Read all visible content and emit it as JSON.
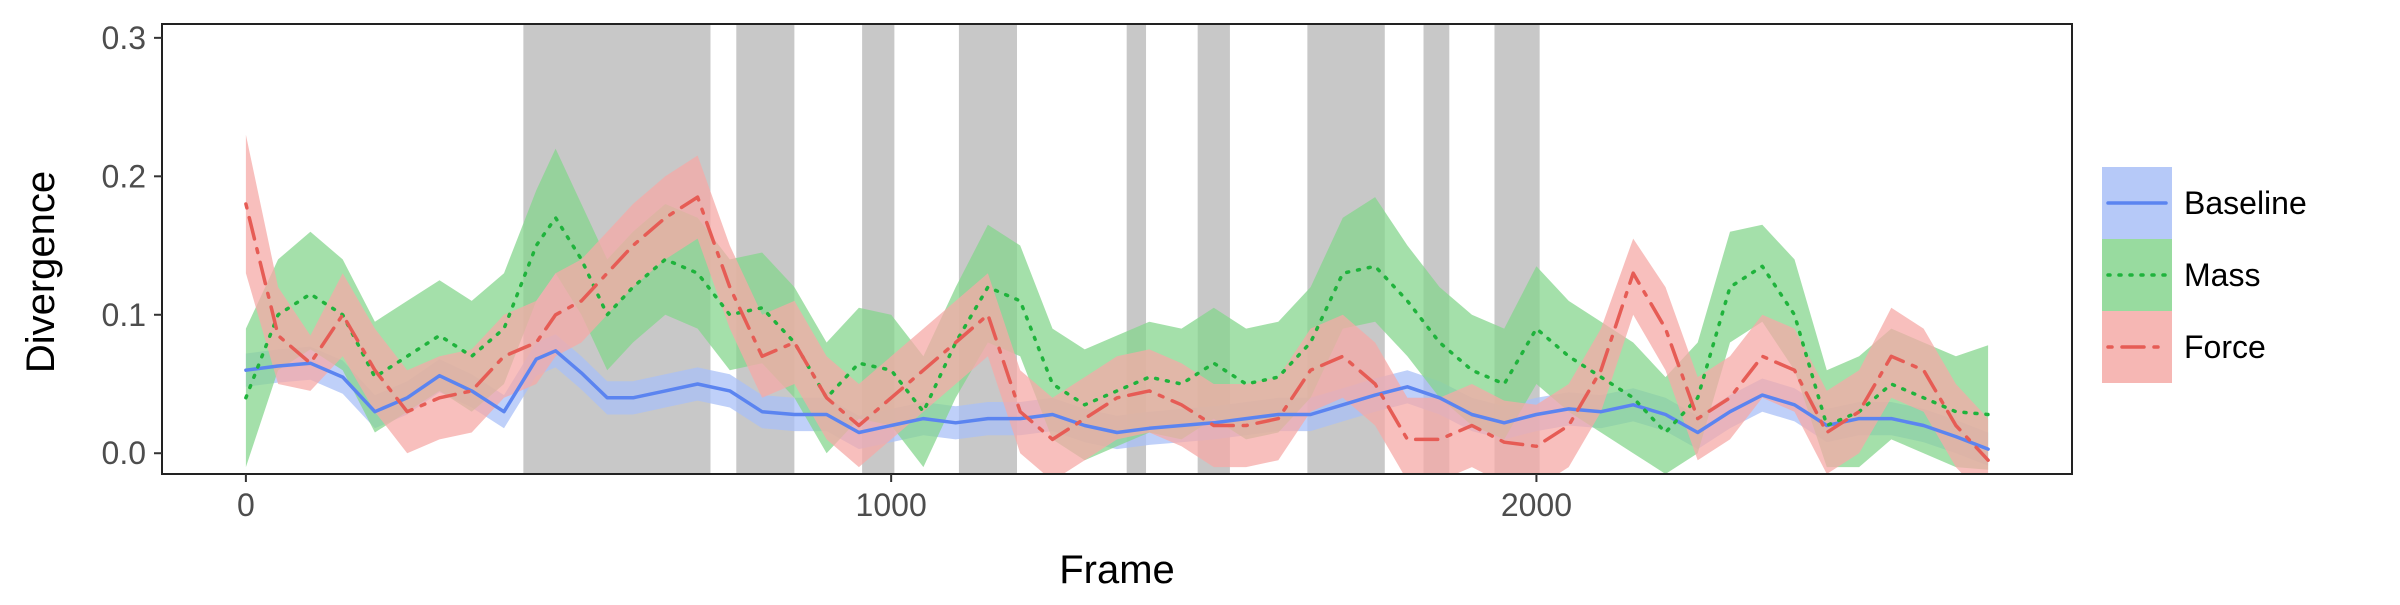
{
  "chart_data": {
    "type": "line",
    "title": "",
    "xlabel": "Frame",
    "ylabel": "Divergence",
    "xlim": [
      -130,
      2830
    ],
    "ylim": [
      -0.015,
      0.31
    ],
    "x_ticks": [
      0,
      1000,
      2000
    ],
    "x_tick_labels": [
      "0",
      "1000",
      "2000"
    ],
    "y_ticks": [
      0.0,
      0.1,
      0.2,
      0.3
    ],
    "y_tick_labels": [
      "0.0",
      "0.1",
      "0.2",
      "0.3"
    ],
    "grid": false,
    "legend_position": "right",
    "shaded_intervals": [
      [
        430,
        720
      ],
      [
        760,
        850
      ],
      [
        955,
        1005
      ],
      [
        1105,
        1195
      ],
      [
        1365,
        1395
      ],
      [
        1475,
        1525
      ],
      [
        1645,
        1765
      ],
      [
        1825,
        1865
      ],
      [
        1935,
        2005
      ]
    ],
    "shaded_color": "#c8c8c8",
    "series": [
      {
        "name": "Baseline",
        "style": "solid",
        "color": "#5b84f0",
        "fill": "#a9c0f7",
        "x": [
          0,
          50,
          100,
          150,
          200,
          250,
          300,
          350,
          400,
          450,
          480,
          520,
          560,
          600,
          650,
          700,
          750,
          800,
          850,
          900,
          950,
          1000,
          1050,
          1100,
          1150,
          1200,
          1250,
          1300,
          1350,
          1400,
          1450,
          1500,
          1550,
          1600,
          1650,
          1700,
          1750,
          1800,
          1850,
          1900,
          1950,
          2000,
          2050,
          2100,
          2150,
          2200,
          2250,
          2300,
          2350,
          2400,
          2450,
          2500,
          2550,
          2600,
          2650,
          2700
        ],
        "y": [
          0.06,
          0.063,
          0.065,
          0.055,
          0.03,
          0.04,
          0.056,
          0.045,
          0.03,
          0.068,
          0.074,
          0.058,
          0.04,
          0.04,
          0.045,
          0.05,
          0.045,
          0.03,
          0.028,
          0.028,
          0.015,
          0.02,
          0.025,
          0.022,
          0.025,
          0.025,
          0.028,
          0.02,
          0.015,
          0.018,
          0.02,
          0.022,
          0.025,
          0.028,
          0.028,
          0.035,
          0.042,
          0.048,
          0.04,
          0.028,
          0.022,
          0.028,
          0.032,
          0.03,
          0.035,
          0.028,
          0.015,
          0.03,
          0.042,
          0.035,
          0.02,
          0.025,
          0.025,
          0.02,
          0.012,
          0.003
        ],
        "lower": [
          0.048,
          0.051,
          0.053,
          0.043,
          0.018,
          0.028,
          0.044,
          0.033,
          0.018,
          0.056,
          0.062,
          0.046,
          0.028,
          0.028,
          0.033,
          0.038,
          0.033,
          0.018,
          0.016,
          0.016,
          0.003,
          0.008,
          0.013,
          0.01,
          0.013,
          0.013,
          0.016,
          0.008,
          0.003,
          0.006,
          0.008,
          0.01,
          0.013,
          0.016,
          0.016,
          0.023,
          0.03,
          0.036,
          0.028,
          0.016,
          0.01,
          0.016,
          0.02,
          0.018,
          0.023,
          0.016,
          0.003,
          0.018,
          0.03,
          0.023,
          0.008,
          0.013,
          0.013,
          0.008,
          0.0,
          -0.009
        ],
        "upper": [
          0.072,
          0.075,
          0.077,
          0.067,
          0.042,
          0.052,
          0.068,
          0.057,
          0.042,
          0.08,
          0.086,
          0.07,
          0.052,
          0.052,
          0.057,
          0.062,
          0.057,
          0.042,
          0.04,
          0.04,
          0.027,
          0.032,
          0.037,
          0.034,
          0.037,
          0.037,
          0.04,
          0.032,
          0.027,
          0.03,
          0.032,
          0.034,
          0.037,
          0.04,
          0.04,
          0.047,
          0.054,
          0.06,
          0.052,
          0.04,
          0.034,
          0.04,
          0.044,
          0.042,
          0.047,
          0.04,
          0.027,
          0.042,
          0.054,
          0.047,
          0.032,
          0.037,
          0.037,
          0.032,
          0.024,
          0.015
        ]
      },
      {
        "name": "Mass",
        "style": "dotted",
        "color": "#1fb33c",
        "fill": "#86d58e",
        "x": [
          0,
          50,
          100,
          150,
          200,
          250,
          300,
          350,
          400,
          450,
          480,
          520,
          560,
          600,
          650,
          700,
          750,
          800,
          850,
          900,
          950,
          1000,
          1050,
          1100,
          1150,
          1200,
          1250,
          1300,
          1350,
          1400,
          1450,
          1500,
          1550,
          1600,
          1650,
          1700,
          1750,
          1800,
          1850,
          1900,
          1950,
          2000,
          2050,
          2100,
          2150,
          2200,
          2250,
          2300,
          2350,
          2400,
          2450,
          2500,
          2550,
          2600,
          2650,
          2700
        ],
        "y": [
          0.04,
          0.1,
          0.115,
          0.1,
          0.055,
          0.07,
          0.085,
          0.07,
          0.09,
          0.15,
          0.17,
          0.14,
          0.1,
          0.12,
          0.14,
          0.13,
          0.1,
          0.105,
          0.08,
          0.04,
          0.065,
          0.06,
          0.03,
          0.08,
          0.12,
          0.11,
          0.05,
          0.035,
          0.045,
          0.055,
          0.05,
          0.065,
          0.05,
          0.055,
          0.08,
          0.13,
          0.135,
          0.11,
          0.08,
          0.06,
          0.05,
          0.09,
          0.07,
          0.055,
          0.04,
          0.015,
          0.04,
          0.12,
          0.135,
          0.1,
          0.02,
          0.03,
          0.05,
          0.04,
          0.03,
          0.028
        ],
        "lower": [
          -0.01,
          0.06,
          0.075,
          0.06,
          0.015,
          0.03,
          0.045,
          0.03,
          0.05,
          0.11,
          0.13,
          0.1,
          0.06,
          0.08,
          0.1,
          0.09,
          0.06,
          0.065,
          0.04,
          0.0,
          0.025,
          0.02,
          -0.01,
          0.04,
          0.08,
          0.07,
          0.01,
          -0.005,
          0.005,
          0.015,
          0.01,
          0.025,
          0.01,
          0.015,
          0.04,
          0.09,
          0.095,
          0.07,
          0.04,
          0.02,
          0.01,
          0.05,
          0.03,
          0.015,
          0.0,
          -0.015,
          0.0,
          0.08,
          0.095,
          0.06,
          -0.01,
          -0.01,
          0.01,
          0.0,
          -0.01,
          -0.012
        ],
        "upper": [
          0.09,
          0.14,
          0.16,
          0.14,
          0.095,
          0.11,
          0.125,
          0.11,
          0.13,
          0.19,
          0.22,
          0.18,
          0.14,
          0.16,
          0.18,
          0.17,
          0.14,
          0.145,
          0.12,
          0.08,
          0.105,
          0.1,
          0.07,
          0.12,
          0.165,
          0.15,
          0.09,
          0.075,
          0.085,
          0.095,
          0.09,
          0.105,
          0.09,
          0.095,
          0.12,
          0.17,
          0.185,
          0.15,
          0.12,
          0.1,
          0.09,
          0.135,
          0.11,
          0.095,
          0.08,
          0.055,
          0.08,
          0.16,
          0.165,
          0.14,
          0.06,
          0.07,
          0.09,
          0.08,
          0.07,
          0.078
        ]
      },
      {
        "name": "Force",
        "style": "dashdot",
        "color": "#e65c55",
        "fill": "#f5aaa7",
        "x": [
          0,
          50,
          100,
          150,
          200,
          250,
          300,
          350,
          400,
          450,
          480,
          520,
          560,
          600,
          650,
          700,
          750,
          800,
          850,
          900,
          950,
          1000,
          1050,
          1100,
          1150,
          1200,
          1250,
          1300,
          1350,
          1400,
          1450,
          1500,
          1550,
          1600,
          1650,
          1700,
          1750,
          1800,
          1850,
          1900,
          1950,
          2000,
          2050,
          2100,
          2150,
          2200,
          2250,
          2300,
          2350,
          2400,
          2450,
          2500,
          2550,
          2600,
          2650,
          2700
        ],
        "y": [
          0.18,
          0.085,
          0.065,
          0.1,
          0.06,
          0.03,
          0.04,
          0.045,
          0.07,
          0.08,
          0.1,
          0.11,
          0.13,
          0.15,
          0.17,
          0.185,
          0.12,
          0.07,
          0.08,
          0.04,
          0.02,
          0.04,
          0.06,
          0.08,
          0.1,
          0.03,
          0.01,
          0.025,
          0.04,
          0.045,
          0.035,
          0.02,
          0.02,
          0.025,
          0.06,
          0.07,
          0.05,
          0.01,
          0.01,
          0.02,
          0.008,
          0.005,
          0.02,
          0.06,
          0.13,
          0.09,
          0.025,
          0.04,
          0.07,
          0.06,
          0.015,
          0.03,
          0.07,
          0.06,
          0.02,
          -0.005
        ],
        "lower": [
          0.13,
          0.05,
          0.045,
          0.07,
          0.03,
          0.0,
          0.01,
          0.015,
          0.04,
          0.05,
          0.07,
          0.08,
          0.1,
          0.12,
          0.14,
          0.155,
          0.09,
          0.04,
          0.05,
          0.01,
          -0.01,
          0.01,
          0.03,
          0.05,
          0.07,
          0.0,
          -0.02,
          -0.005,
          0.01,
          0.015,
          0.005,
          -0.01,
          -0.01,
          -0.005,
          0.03,
          0.04,
          0.02,
          -0.02,
          -0.02,
          -0.01,
          -0.022,
          -0.025,
          -0.01,
          0.03,
          0.1,
          0.06,
          -0.005,
          0.01,
          0.04,
          0.03,
          -0.015,
          0.0,
          0.04,
          0.03,
          -0.01,
          -0.035
        ],
        "upper": [
          0.23,
          0.12,
          0.085,
          0.13,
          0.09,
          0.06,
          0.07,
          0.075,
          0.1,
          0.11,
          0.13,
          0.14,
          0.16,
          0.18,
          0.2,
          0.215,
          0.15,
          0.1,
          0.11,
          0.07,
          0.05,
          0.07,
          0.09,
          0.11,
          0.13,
          0.06,
          0.04,
          0.055,
          0.07,
          0.075,
          0.065,
          0.05,
          0.05,
          0.055,
          0.09,
          0.1,
          0.08,
          0.04,
          0.04,
          0.05,
          0.038,
          0.035,
          0.05,
          0.09,
          0.155,
          0.12,
          0.055,
          0.07,
          0.1,
          0.09,
          0.045,
          0.06,
          0.105,
          0.09,
          0.05,
          0.025
        ]
      }
    ]
  }
}
